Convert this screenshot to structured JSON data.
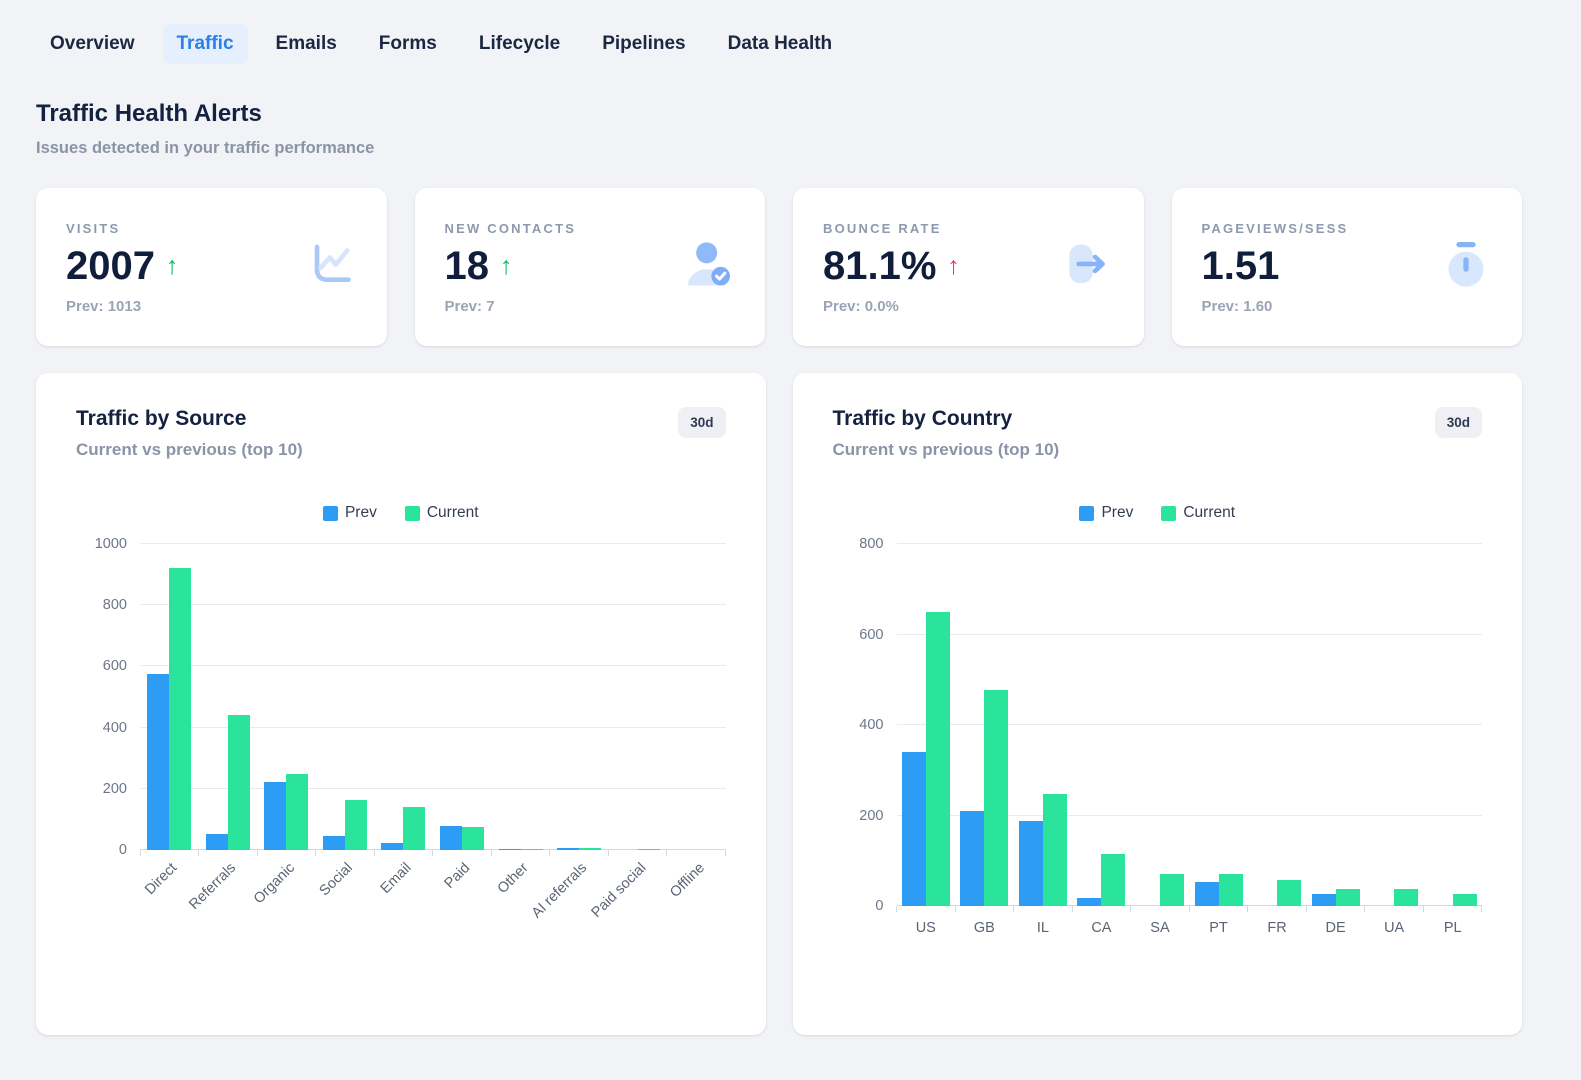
{
  "nav": {
    "tabs": [
      {
        "label": "Overview",
        "active": false
      },
      {
        "label": "Traffic",
        "active": true
      },
      {
        "label": "Emails",
        "active": false
      },
      {
        "label": "Forms",
        "active": false
      },
      {
        "label": "Lifecycle",
        "active": false
      },
      {
        "label": "Pipelines",
        "active": false
      },
      {
        "label": "Data Health",
        "active": false
      }
    ]
  },
  "header": {
    "title": "Traffic Health Alerts",
    "subtitle": "Issues detected in your traffic performance"
  },
  "kpis": [
    {
      "label": "VISITS",
      "value": "2007",
      "trend_arrow": "↑",
      "trend_color": "#12b76a",
      "prev": "Prev: 1013",
      "icon": "line-chart-icon"
    },
    {
      "label": "NEW CONTACTS",
      "value": "18",
      "trend_arrow": "↑",
      "trend_color": "#12b76a",
      "prev": "Prev: 7",
      "icon": "user-check-icon"
    },
    {
      "label": "BOUNCE RATE",
      "value": "81.1%",
      "trend_arrow": "↑",
      "trend_color": "#ee3a57",
      "prev": "Prev: 0.0%",
      "icon": "exit-arrow-icon"
    },
    {
      "label": "PAGEVIEWS/SESS",
      "value": "1.51",
      "trend_arrow": "",
      "trend_color": "",
      "prev": "Prev: 1.60",
      "icon": "stopwatch-icon"
    }
  ],
  "colors": {
    "prev": "#2d9cf4",
    "current": "#2be49b",
    "accent_blue": "#2b7fe8",
    "trend_up_green": "#12b76a",
    "trend_up_red": "#ee3a57"
  },
  "chart_data": [
    {
      "type": "bar",
      "title": "Traffic by Source",
      "subtitle": "Current vs previous (top 10)",
      "range_badge": "30d",
      "legend_position": "top-center",
      "grid": true,
      "categories": [
        "Direct",
        "Referrals",
        "Organic",
        "Social",
        "Email",
        "Paid",
        "Other",
        "AI referrals",
        "Paid social",
        "Offline"
      ],
      "series": [
        {
          "name": "Prev",
          "color": "#2d9cf4",
          "values": [
            575,
            52,
            222,
            46,
            23,
            78,
            4,
            6,
            0,
            0
          ]
        },
        {
          "name": "Current",
          "color": "#2be49b",
          "values": [
            920,
            440,
            249,
            164,
            141,
            74,
            4,
            5,
            3,
            0
          ]
        }
      ],
      "ylim": [
        0,
        1000
      ],
      "yticks": [
        0,
        200,
        400,
        600,
        800,
        1000
      ],
      "xlabel_rotation": -45
    },
    {
      "type": "bar",
      "title": "Traffic by Country",
      "subtitle": "Current vs previous (top 10)",
      "range_badge": "30d",
      "legend_position": "top-center",
      "grid": true,
      "categories": [
        "US",
        "GB",
        "IL",
        "CA",
        "SA",
        "PT",
        "FR",
        "DE",
        "UA",
        "PL"
      ],
      "series": [
        {
          "name": "Prev",
          "color": "#2d9cf4",
          "values": [
            340,
            210,
            188,
            18,
            0,
            52,
            0,
            27,
            0,
            0
          ]
        },
        {
          "name": "Current",
          "color": "#2be49b",
          "values": [
            650,
            478,
            247,
            115,
            70,
            70,
            58,
            38,
            37,
            26
          ]
        }
      ],
      "ylim": [
        0,
        800
      ],
      "yticks": [
        0,
        200,
        400,
        600,
        800
      ],
      "xlabel_rotation": 0
    }
  ]
}
